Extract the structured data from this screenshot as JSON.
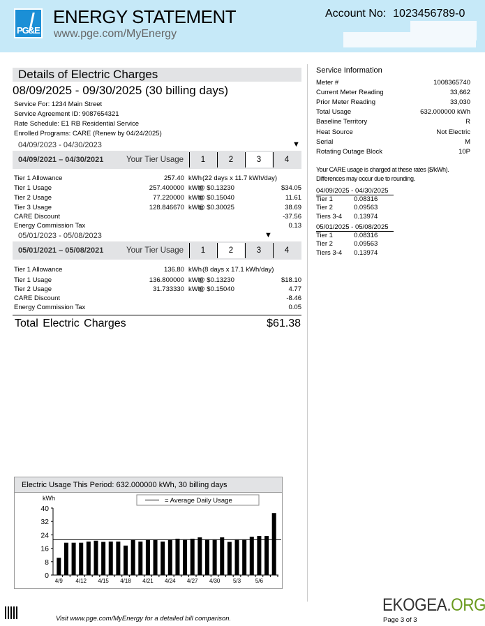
{
  "header": {
    "logo_text": "PG&E",
    "title": "ENERGY STATEMENT",
    "url": "www.pge.com/MyEnergy",
    "account_label": "Account No:",
    "account_number": "1023456789-0",
    "brand_color": "#1b8fd6",
    "bg_color": "#c6e9f8"
  },
  "details": {
    "title": "Details of Electric Charges",
    "period": "08/09/2025 - 09/30/2025 (30 billing days)",
    "service_for": "Service For: 1234 Main Street",
    "agreement": "Service Agreement ID: 9087654321",
    "rate_schedule": "Rate Schedule:  E1 RB Residential Service",
    "programs": "Enrolled Programs:  CARE (Renew by 04/24/2025)"
  },
  "tier_sections": [
    {
      "dates": "04/09/2021 – 04/30/2021",
      "dates_overlay": "04/09/2023 - 04/30/2023",
      "your_tier_usage": "Your Tier Usage",
      "tiers": [
        "1",
        "2",
        "3",
        "4"
      ],
      "current_tier": "3",
      "rows": [
        {
          "label": "Tier 1 Allowance",
          "qty": "257.40",
          "unit": "kWh",
          "rate": "(22 days x 11.7 kWh/day)",
          "amount": ""
        },
        {
          "label": "Tier 1 Usage",
          "qty": "257.400000",
          "unit": "kWh",
          "rate": "@ $0.13230",
          "amount": "$34.05"
        },
        {
          "label": "Tier 2 Usage",
          "qty": "77.220000",
          "unit": "kWh",
          "rate": "@ $0.15040",
          "amount": "11.61"
        },
        {
          "label": "Tier 3 Usage",
          "qty": "128.846670",
          "unit": "kWh",
          "rate": "@ $0.30025",
          "amount": "38.69"
        },
        {
          "label": "CARE Discount",
          "qty": "",
          "unit": "",
          "rate": "",
          "amount": "-37.56"
        },
        {
          "label": "Energy Commission Tax",
          "qty": "",
          "unit": "",
          "rate": "",
          "amount": "0.13"
        }
      ]
    },
    {
      "dates": "05/01/2021 – 05/08/2021",
      "dates_overlay": "05/01/2023 - 05/08/2023",
      "your_tier_usage": "Your Tier Usage",
      "tiers": [
        "1",
        "2",
        "3",
        "4"
      ],
      "current_tier": "2",
      "rows": [
        {
          "label": "Tier 1 Allowance",
          "qty": "136.80",
          "unit": "kWh",
          "rate": "(8 days x 17.1 kWh/day)",
          "amount": ""
        },
        {
          "label": "Tier 1 Usage",
          "qty": "136.800000",
          "unit": "kWh",
          "rate": "@ $0.13230",
          "amount": "$18.10"
        },
        {
          "label": "Tier 2 Usage",
          "qty": "31.733330",
          "unit": "kWh",
          "rate": "@ $0.15040",
          "amount": "4.77"
        },
        {
          "label": "CARE Discount",
          "qty": "",
          "unit": "",
          "rate": "",
          "amount": "-8.46"
        },
        {
          "label": "Energy Commission Tax",
          "qty": "",
          "unit": "",
          "rate": "",
          "amount": "0.05"
        }
      ]
    }
  ],
  "total": {
    "label": "Total  Electric  Charges",
    "value": "$61.38"
  },
  "service_info": {
    "title": "Service Information",
    "items": [
      {
        "label": "Meter #",
        "value": "1008365740"
      },
      {
        "label": "Current Meter Reading",
        "value": "33,662"
      },
      {
        "label": "Prior Meter Reading",
        "value": "33,030"
      },
      {
        "label": "Total Usage",
        "value": "632.000000  kWh"
      },
      {
        "label": "Baseline Territory",
        "value": "R"
      },
      {
        "label": "Heat Source",
        "value": "Not Electric"
      },
      {
        "label": "Serial",
        "value": "M"
      },
      {
        "label": "Rotating Outage Block",
        "value": "10P"
      }
    ],
    "care_note_1": "Your CARE usage is charged at these rates ($/kWh).",
    "care_note_2": "Differences may occur due to rounding.",
    "rate_periods": [
      {
        "period": "04/09/2025 - 04/30/2025",
        "rates": [
          {
            "tier": "Tier 1",
            "rate": "0.08316"
          },
          {
            "tier": "Tier 2",
            "rate": "0.09563"
          },
          {
            "tier": "Tiers 3-4",
            "rate": "0.13974"
          }
        ]
      },
      {
        "period": "05/01/2025 - 05/08/2025",
        "rates": [
          {
            "tier": "Tier 1",
            "rate": "0.08316"
          },
          {
            "tier": "Tier 2",
            "rate": "0.09563"
          },
          {
            "tier": "Tiers 3-4",
            "rate": "0.13974"
          }
        ]
      }
    ]
  },
  "chart_data": {
    "type": "bar",
    "title": "Electric Usage This Period: 632.000000 kWh, 30 billing days",
    "ylabel": "kWh",
    "ylim": [
      0,
      40
    ],
    "yticks": [
      0,
      8,
      16,
      24,
      32,
      40
    ],
    "legend": "=  Average Daily Usage",
    "legend_placement": "top-right",
    "average": 21.07,
    "categories": [
      "4/9",
      "4/10",
      "4/11",
      "4/12",
      "4/13",
      "4/14",
      "4/15",
      "4/16",
      "4/17",
      "4/18",
      "4/19",
      "4/20",
      "4/21",
      "4/22",
      "4/23",
      "4/24",
      "4/25",
      "4/26",
      "4/27",
      "4/28",
      "4/29",
      "4/30",
      "5/1",
      "5/2",
      "5/3",
      "5/4",
      "5/5",
      "5/6",
      "5/7",
      "5/8"
    ],
    "xtick_labels": [
      "4/9",
      "4/12",
      "4/15",
      "4/18",
      "4/21",
      "4/24",
      "4/27",
      "4/30",
      "5/3",
      "5/6"
    ],
    "values": [
      10.3,
      19.3,
      19.3,
      19.3,
      20,
      20.5,
      19.8,
      20,
      20,
      17.6,
      21,
      20,
      21,
      21,
      20,
      21,
      21.7,
      21.3,
      21.7,
      22.5,
      21.3,
      21.3,
      22.5,
      19.8,
      21.3,
      21.3,
      22.9,
      23.3,
      23.3,
      37
    ],
    "bar_color": "#000000"
  },
  "footer": {
    "visit": "Visit www.pge.com/MyEnergy for a detailed bill comparison.",
    "watermark_1": "EKOGEA.",
    "watermark_2": "ORG",
    "page": "Page 3 of 3"
  }
}
